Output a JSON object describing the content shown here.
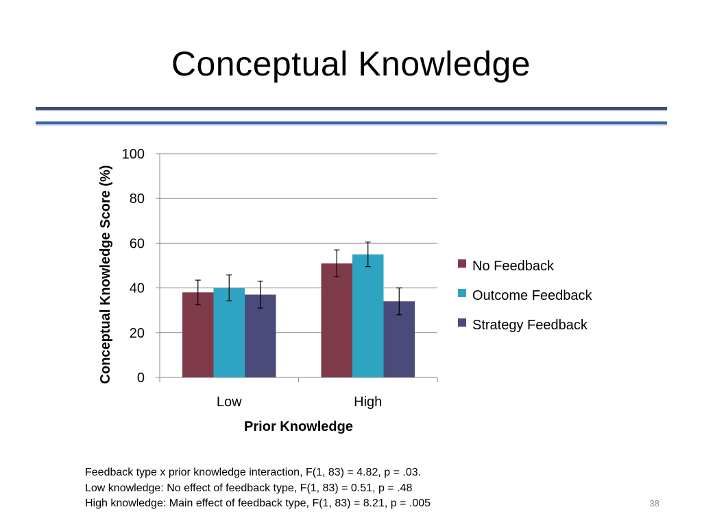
{
  "slide": {
    "title": "Conceptual Knowledge",
    "footnotes": [
      "Feedback type x prior knowledge interaction, F(1, 83) = 4.82, p = .03.",
      "Low knowledge: No effect of feedback type, F(1, 83) =  0.51, p = .48",
      "High knowledge: Main effect of feedback type, F(1, 83) = 8.21, p = .005"
    ],
    "page_number": "38",
    "accent_colors": {
      "top_rule": "#3c4a78",
      "bottom_rule": "#3a62a8"
    }
  },
  "chart_data": {
    "type": "bar",
    "categories": [
      "Low",
      "High"
    ],
    "series": [
      {
        "name": "No Feedback",
        "color": "#7f3a4a",
        "values": [
          38,
          51
        ],
        "errors": [
          5.5,
          6
        ]
      },
      {
        "name": "Outcome Feedback",
        "color": "#2fa4c2",
        "values": [
          40,
          55
        ],
        "errors": [
          5.8,
          5.5
        ]
      },
      {
        "name": "Strategy Feedback",
        "color": "#4a4b7a",
        "values": [
          37,
          34
        ],
        "errors": [
          6,
          6
        ]
      }
    ],
    "xlabel": "Prior Knowledge",
    "ylabel": "Conceptual Knowledge Score (%)",
    "ylim": [
      0,
      100
    ],
    "yticks": [
      0,
      20,
      40,
      60,
      80,
      100
    ],
    "grid": true,
    "legend_position": "right"
  }
}
